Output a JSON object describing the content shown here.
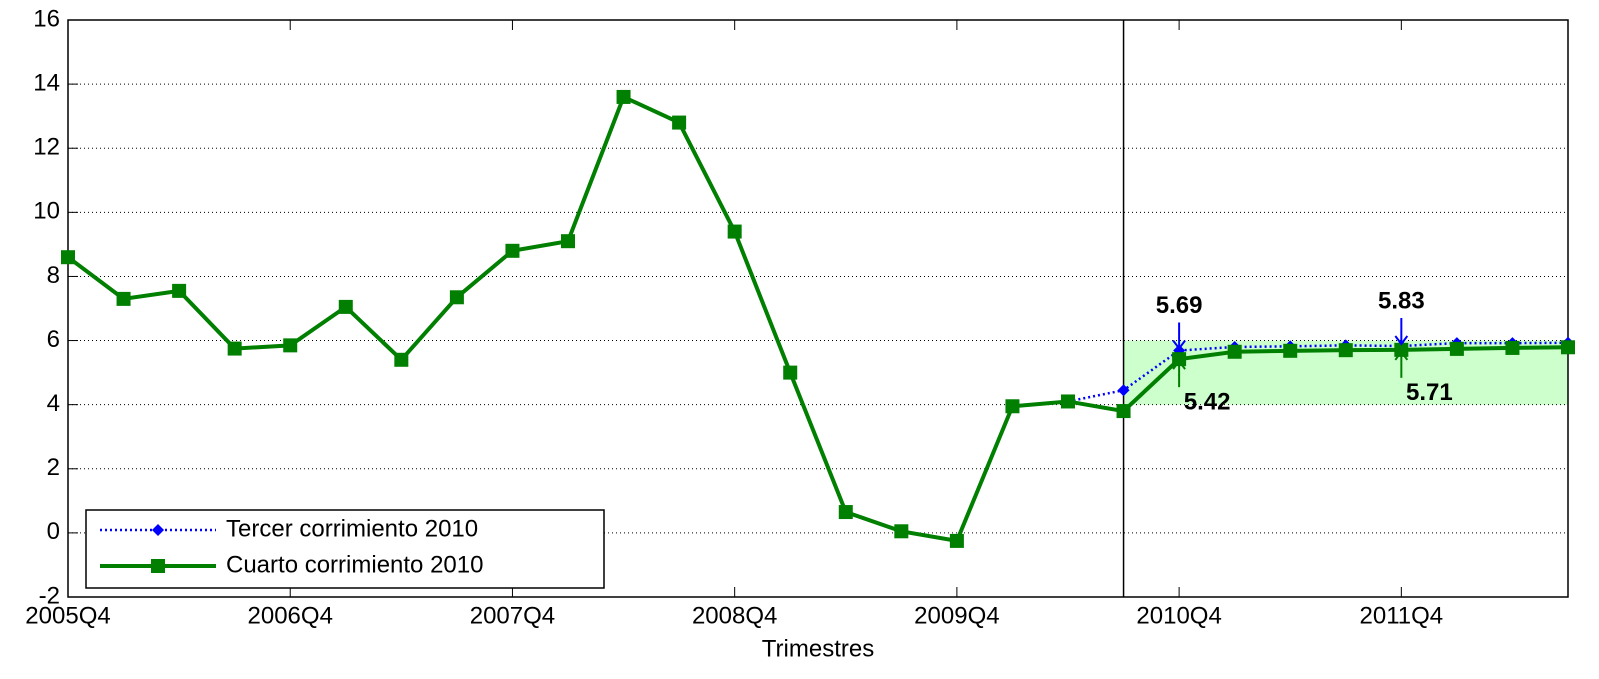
{
  "chart_data": {
    "type": "line",
    "xlabel": "Trimestres",
    "categories": [
      "2005Q4",
      null,
      null,
      null,
      "2006Q4",
      null,
      null,
      null,
      "2007Q4",
      null,
      null,
      null,
      "2008Q4",
      null,
      null,
      null,
      "2009Q4",
      null,
      null,
      null,
      "2010Q4",
      null,
      null,
      null,
      "2011Q4",
      null,
      null,
      null
    ],
    "series": [
      {
        "name": "Tercer corrimiento 2010",
        "color": "#0000ff",
        "style": "dotted",
        "marker": "diamond",
        "values": [
          8.6,
          7.3,
          7.55,
          5.75,
          5.85,
          7.05,
          5.4,
          7.35,
          8.8,
          9.1,
          13.6,
          12.8,
          9.4,
          5.0,
          0.65,
          0.05,
          -0.25,
          3.95,
          4.1,
          4.45,
          5.69,
          5.8,
          5.82,
          5.85,
          5.83,
          5.92,
          5.92,
          5.93
        ]
      },
      {
        "name": "Cuarto corrimiento 2010",
        "color": "#007f00",
        "style": "solid",
        "marker": "square",
        "values": [
          8.6,
          7.3,
          7.55,
          5.75,
          5.85,
          7.05,
          5.4,
          7.35,
          8.8,
          9.1,
          13.6,
          12.8,
          9.4,
          5.0,
          0.65,
          0.05,
          -0.25,
          3.95,
          4.1,
          3.8,
          5.42,
          5.65,
          5.68,
          5.7,
          5.71,
          5.74,
          5.77,
          5.79
        ]
      }
    ],
    "annotations": [
      {
        "series": 0,
        "index": 20,
        "value": 5.69,
        "position": "above"
      },
      {
        "series": 0,
        "index": 24,
        "value": 5.83,
        "position": "above"
      },
      {
        "series": 1,
        "index": 20,
        "value": 5.42,
        "position": "below"
      },
      {
        "series": 1,
        "index": 24,
        "value": 5.71,
        "position": "below"
      }
    ],
    "vline_index": 19,
    "shaded_region": {
      "from_index": 19,
      "to_index": 27,
      "y": [
        4,
        6
      ],
      "color": "#ccffcc"
    },
    "ylim": [
      -2,
      16
    ],
    "yticks": [
      -2,
      0,
      2,
      4,
      6,
      8,
      10,
      12,
      14,
      16
    ],
    "grid": true,
    "legend": "lower left"
  }
}
